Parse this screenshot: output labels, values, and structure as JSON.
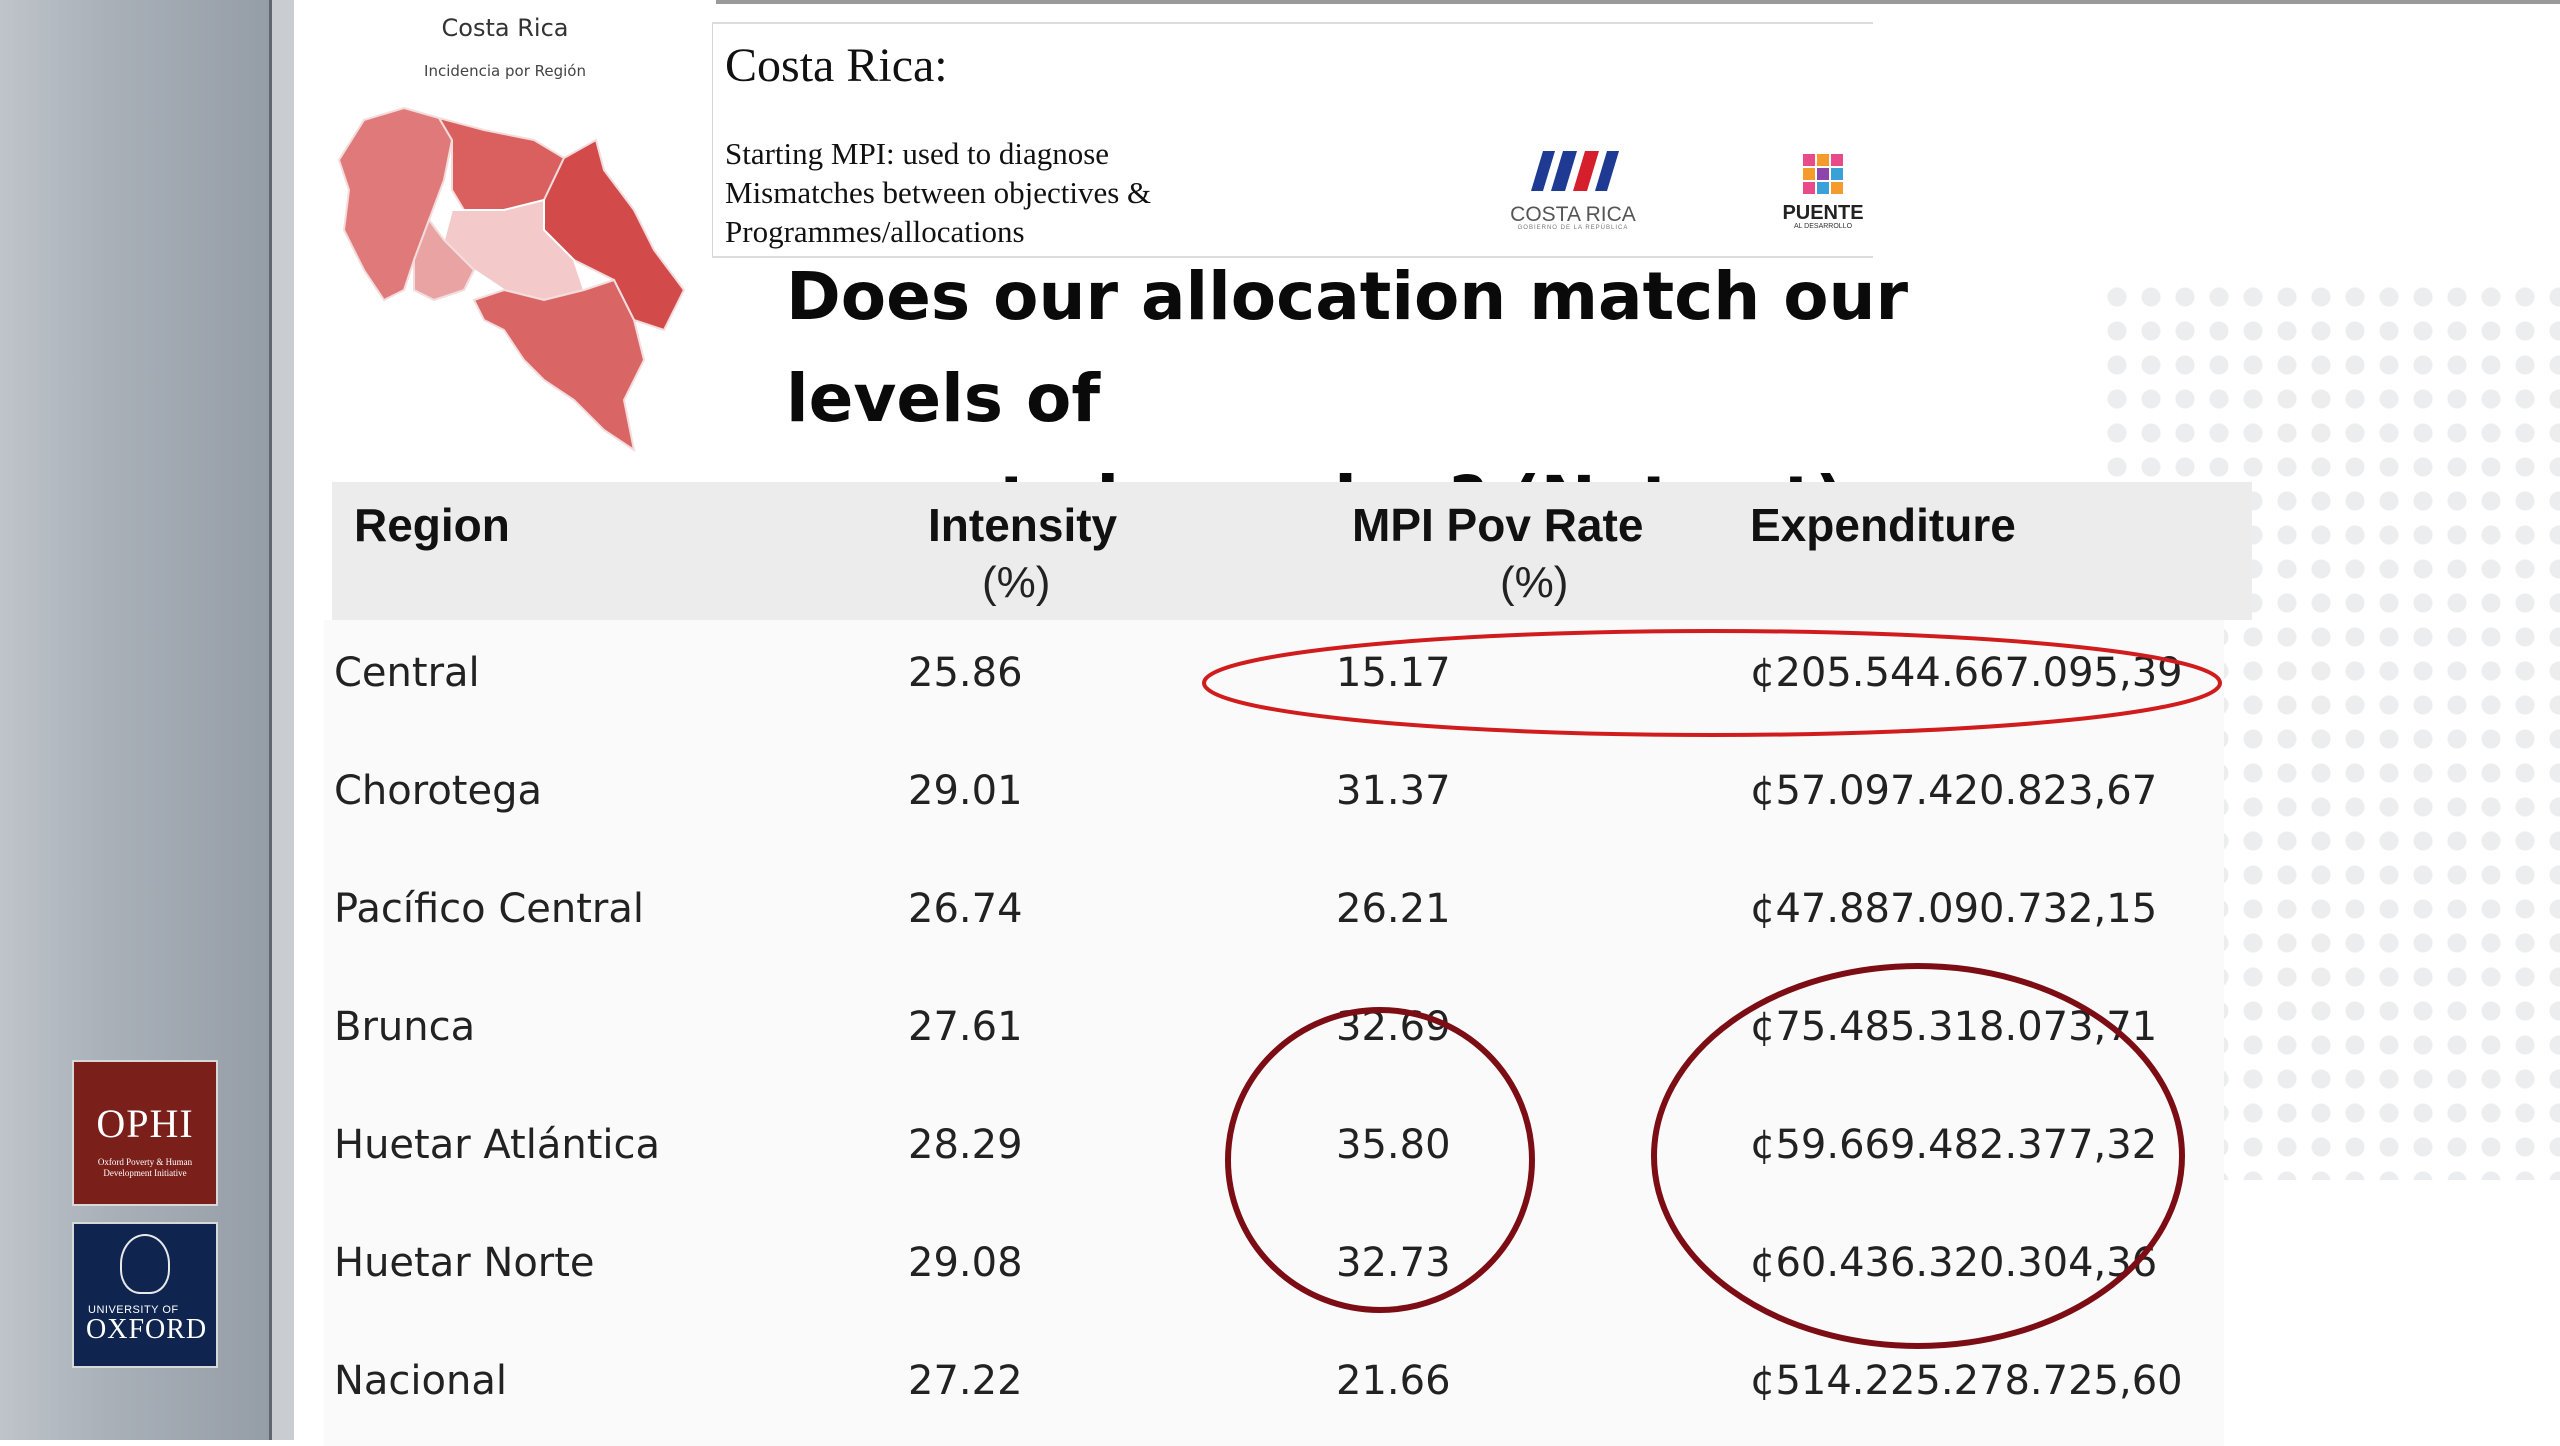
{
  "map": {
    "title": "Costa Rica",
    "subtitle": "Incidencia por Región"
  },
  "header": {
    "title": "Costa Rica:",
    "lines": [
      "Starting MPI: used to diagnose",
      "Mismatches between objectives &",
      "Programmes/allocations"
    ],
    "logo_cr": {
      "label": "COSTA RICA",
      "small": "GOBIERNO DE LA REPÚBLICA"
    },
    "logo_puente": {
      "label": "PUENTE",
      "small": "AL DESARROLLO"
    }
  },
  "question": {
    "line1": "Does our allocation match our levels of",
    "line2": "poverty by region?  (Not yet)"
  },
  "table": {
    "headers": {
      "region": "Region",
      "intensity": "Intensity",
      "intensity_unit": "(%)",
      "mpi": "MPI Pov Rate",
      "mpi_unit": "(%)",
      "expenditure": "Expenditure"
    },
    "rows": [
      {
        "region": "Central",
        "intensity": "25.86",
        "mpi": "15.17",
        "expenditure": "¢205.544.667.095,39"
      },
      {
        "region": "Chorotega",
        "intensity": "29.01",
        "mpi": "31.37",
        "expenditure": "¢57.097.420.823,67"
      },
      {
        "region": "Pacífico Central",
        "intensity": "26.74",
        "mpi": "26.21",
        "expenditure": "¢47.887.090.732,15"
      },
      {
        "region": "Brunca",
        "intensity": "27.61",
        "mpi": "32.69",
        "expenditure": "¢75.485.318.073,71"
      },
      {
        "region": "Huetar Atlántica",
        "intensity": "28.29",
        "mpi": "35.80",
        "expenditure": "¢59.669.482.377,32"
      },
      {
        "region": "Huetar Norte",
        "intensity": "29.08",
        "mpi": "32.73",
        "expenditure": "¢60.436.320.304,36"
      },
      {
        "region": "Nacional",
        "intensity": "27.22",
        "mpi": "21.66",
        "expenditure": "¢514.225.278.725,60"
      }
    ]
  },
  "logos": {
    "ophi_title": "OPHI",
    "ophi_sub": "Oxford Poverty & Human Development Initiative",
    "oxford_small": "UNIVERSITY OF",
    "oxford_title": "OXFORD"
  },
  "colors": {
    "annotation_red": "#d01c1c",
    "annotation_maroon": "#7d0d14",
    "map_dark": "#d24a4a",
    "map_mid": "#e07a7a",
    "map_light": "#f4c9c9"
  }
}
